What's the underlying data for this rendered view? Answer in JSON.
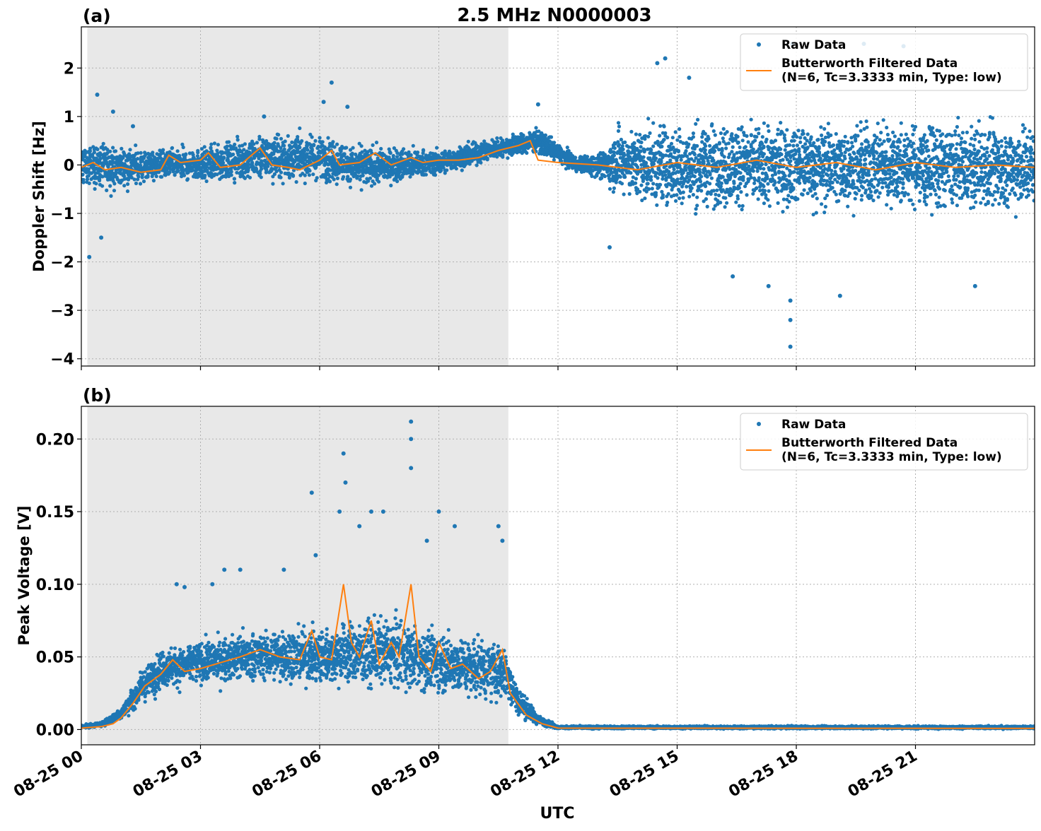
{
  "figure": {
    "title": "2.5 MHz N0000003",
    "xlabel": "UTC"
  },
  "colors": {
    "raw": "#1f77b4",
    "filtered": "#ff7f0e",
    "shade": "#e8e8e8",
    "grid": "#b0b0b0"
  },
  "chart_data": [
    {
      "type": "scatter",
      "panel_label": "(a)",
      "title": "2.5 MHz N0000003",
      "xlabel": "",
      "ylabel": "Doppler Shift [Hz]",
      "x_unit": "hours UTC on 08-25",
      "xlim": [
        0,
        24
      ],
      "ylim": [
        -4.15,
        2.85
      ],
      "yticks": [
        -4,
        -3,
        -2,
        -1,
        0,
        1,
        2
      ],
      "ytick_labels": [
        "−4",
        "−3",
        "−2",
        "−1",
        "0",
        "1",
        "2"
      ],
      "grid": true,
      "shaded_interval": [
        0.15,
        10.75
      ],
      "legend_position": "top-right",
      "series": [
        {
          "name": "Raw Data",
          "style": "points",
          "color": "#1f77b4",
          "envelope": [
            [
              0.0,
              -0.8,
              0.8
            ],
            [
              1.0,
              -0.7,
              0.6
            ],
            [
              2.0,
              -0.5,
              0.5
            ],
            [
              3.0,
              -0.55,
              0.55
            ],
            [
              4.5,
              -0.6,
              0.9
            ],
            [
              6.0,
              -0.6,
              0.9
            ],
            [
              7.0,
              -0.7,
              0.6
            ],
            [
              9.0,
              -0.35,
              0.45
            ],
            [
              10.5,
              0.0,
              0.7
            ],
            [
              11.5,
              0.1,
              0.9
            ],
            [
              12.5,
              -0.25,
              0.25
            ],
            [
              13.2,
              -0.5,
              0.5
            ],
            [
              13.5,
              -1.0,
              1.2
            ],
            [
              14.5,
              -1.4,
              1.4
            ],
            [
              24.0,
              -1.4,
              1.3
            ]
          ],
          "outliers": [
            [
              0.2,
              -1.9
            ],
            [
              0.4,
              1.45
            ],
            [
              0.5,
              -1.5
            ],
            [
              0.8,
              1.1
            ],
            [
              1.3,
              0.8
            ],
            [
              4.6,
              1.0
            ],
            [
              6.1,
              1.3
            ],
            [
              6.3,
              1.7
            ],
            [
              6.7,
              1.2
            ],
            [
              11.5,
              1.25
            ],
            [
              14.5,
              2.1
            ],
            [
              14.7,
              2.2
            ],
            [
              15.3,
              1.8
            ],
            [
              17.3,
              -2.5
            ],
            [
              17.85,
              -3.75
            ],
            [
              17.85,
              -3.2
            ],
            [
              17.85,
              -2.8
            ],
            [
              19.1,
              -2.7
            ],
            [
              20.7,
              2.45
            ],
            [
              22.5,
              -2.5
            ],
            [
              17.9,
              2.5
            ],
            [
              19.7,
              2.5
            ],
            [
              13.3,
              -1.7
            ],
            [
              16.4,
              -2.3
            ]
          ]
        },
        {
          "name": "Butterworth Filtered Data\n(N=6, Tc=3.3333 min, Type: low)",
          "style": "line",
          "color": "#ff7f0e",
          "points": [
            [
              0,
              -0.05
            ],
            [
              0.3,
              0.05
            ],
            [
              0.6,
              -0.1
            ],
            [
              1.0,
              -0.05
            ],
            [
              1.5,
              -0.15
            ],
            [
              2.0,
              -0.1
            ],
            [
              2.2,
              0.2
            ],
            [
              2.5,
              0.05
            ],
            [
              3.0,
              0.1
            ],
            [
              3.2,
              0.25
            ],
            [
              3.5,
              -0.05
            ],
            [
              4.0,
              0.0
            ],
            [
              4.5,
              0.35
            ],
            [
              4.8,
              0.0
            ],
            [
              5.2,
              -0.05
            ],
            [
              5.5,
              -0.1
            ],
            [
              6.0,
              0.1
            ],
            [
              6.3,
              0.3
            ],
            [
              6.5,
              0.0
            ],
            [
              7.0,
              0.05
            ],
            [
              7.4,
              0.25
            ],
            [
              7.8,
              0.0
            ],
            [
              8.3,
              0.15
            ],
            [
              8.6,
              0.05
            ],
            [
              9.0,
              0.1
            ],
            [
              9.5,
              0.1
            ],
            [
              10.0,
              0.15
            ],
            [
              10.5,
              0.3
            ],
            [
              11.0,
              0.4
            ],
            [
              11.3,
              0.5
            ],
            [
              11.5,
              0.1
            ],
            [
              12.0,
              0.05
            ],
            [
              13.0,
              0.0
            ],
            [
              14.0,
              -0.1
            ],
            [
              15.0,
              0.05
            ],
            [
              16.0,
              -0.05
            ],
            [
              17.0,
              0.1
            ],
            [
              18.0,
              -0.05
            ],
            [
              19.0,
              0.05
            ],
            [
              20.0,
              -0.1
            ],
            [
              21.0,
              0.05
            ],
            [
              22.0,
              -0.05
            ],
            [
              23.0,
              0.0
            ],
            [
              24.0,
              -0.05
            ]
          ]
        }
      ]
    },
    {
      "type": "scatter",
      "panel_label": "(b)",
      "title": "",
      "xlabel": "UTC",
      "ylabel": "Peak Voltage [V]",
      "x_unit": "hours UTC on 08-25",
      "xlim": [
        0,
        24
      ],
      "ylim": [
        -0.0105,
        0.2225
      ],
      "yticks": [
        0.0,
        0.05,
        0.1,
        0.15,
        0.2
      ],
      "ytick_labels": [
        "0.00",
        "0.05",
        "0.10",
        "0.15",
        "0.20"
      ],
      "grid": true,
      "shaded_interval": [
        0.15,
        10.75
      ],
      "legend_position": "top-right",
      "xticks": [
        0,
        3,
        6,
        9,
        12,
        15,
        18,
        21
      ],
      "xtick_labels": [
        "08-25 00",
        "08-25 03",
        "08-25 06",
        "08-25 09",
        "08-25 12",
        "08-25 15",
        "08-25 18",
        "08-25 21"
      ],
      "series": [
        {
          "name": "Raw Data",
          "style": "points",
          "color": "#1f77b4",
          "envelope": [
            [
              0.0,
              0.0,
              0.004
            ],
            [
              0.5,
              0.001,
              0.006
            ],
            [
              1.0,
              0.004,
              0.018
            ],
            [
              1.5,
              0.012,
              0.045
            ],
            [
              2.0,
              0.02,
              0.065
            ],
            [
              3.0,
              0.022,
              0.07
            ],
            [
              4.0,
              0.025,
              0.075
            ],
            [
              5.0,
              0.022,
              0.08
            ],
            [
              6.0,
              0.02,
              0.08
            ],
            [
              7.0,
              0.015,
              0.09
            ],
            [
              8.0,
              0.015,
              0.09
            ],
            [
              9.0,
              0.012,
              0.08
            ],
            [
              10.0,
              0.01,
              0.075
            ],
            [
              10.7,
              0.008,
              0.07
            ],
            [
              11.0,
              0.004,
              0.035
            ],
            [
              11.5,
              0.001,
              0.012
            ],
            [
              12.0,
              0.0,
              0.003
            ],
            [
              24.0,
              0.0,
              0.003
            ]
          ],
          "outliers": [
            [
              2.4,
              0.1
            ],
            [
              2.6,
              0.098
            ],
            [
              3.3,
              0.1
            ],
            [
              3.6,
              0.11
            ],
            [
              4.0,
              0.11
            ],
            [
              5.1,
              0.11
            ],
            [
              5.8,
              0.163
            ],
            [
              5.9,
              0.12
            ],
            [
              6.5,
              0.15
            ],
            [
              6.6,
              0.19
            ],
            [
              6.65,
              0.17
            ],
            [
              7.0,
              0.14
            ],
            [
              7.3,
              0.15
            ],
            [
              7.6,
              0.15
            ],
            [
              8.3,
              0.212
            ],
            [
              8.3,
              0.2
            ],
            [
              8.3,
              0.18
            ],
            [
              8.7,
              0.13
            ],
            [
              9.0,
              0.15
            ],
            [
              9.4,
              0.14
            ],
            [
              10.5,
              0.14
            ],
            [
              10.6,
              0.13
            ]
          ]
        },
        {
          "name": "Butterworth Filtered Data\n(N=6, Tc=3.3333 min, Type: low)",
          "style": "line",
          "color": "#ff7f0e",
          "points": [
            [
              0,
              0.001
            ],
            [
              0.5,
              0.002
            ],
            [
              0.8,
              0.004
            ],
            [
              1.0,
              0.008
            ],
            [
              1.3,
              0.018
            ],
            [
              1.6,
              0.03
            ],
            [
              2.0,
              0.038
            ],
            [
              2.3,
              0.048
            ],
            [
              2.6,
              0.04
            ],
            [
              3.0,
              0.042
            ],
            [
              3.5,
              0.046
            ],
            [
              4.0,
              0.05
            ],
            [
              4.5,
              0.055
            ],
            [
              5.0,
              0.05
            ],
            [
              5.5,
              0.048
            ],
            [
              5.8,
              0.068
            ],
            [
              6.0,
              0.05
            ],
            [
              6.3,
              0.048
            ],
            [
              6.6,
              0.1
            ],
            [
              6.8,
              0.06
            ],
            [
              7.0,
              0.05
            ],
            [
              7.3,
              0.075
            ],
            [
              7.5,
              0.045
            ],
            [
              7.8,
              0.06
            ],
            [
              8.0,
              0.05
            ],
            [
              8.3,
              0.1
            ],
            [
              8.5,
              0.05
            ],
            [
              8.8,
              0.04
            ],
            [
              9.0,
              0.06
            ],
            [
              9.3,
              0.042
            ],
            [
              9.6,
              0.045
            ],
            [
              10.0,
              0.035
            ],
            [
              10.3,
              0.04
            ],
            [
              10.6,
              0.055
            ],
            [
              10.8,
              0.025
            ],
            [
              11.2,
              0.01
            ],
            [
              11.6,
              0.004
            ],
            [
              12.0,
              0.001
            ],
            [
              24.0,
              0.0008
            ]
          ]
        }
      ]
    }
  ]
}
